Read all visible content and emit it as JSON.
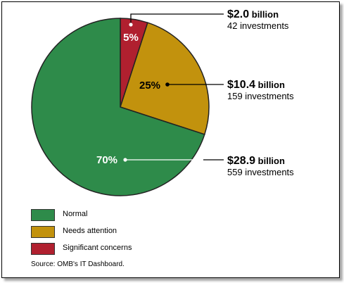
{
  "chart_data": {
    "type": "pie",
    "slices": [
      {
        "name": "Significant concerns",
        "percent": 5,
        "amount": "$2.0",
        "unit": "billion",
        "investments": "42 investments",
        "color": "#b0202f"
      },
      {
        "name": "Needs attention",
        "percent": 25,
        "amount": "$10.4",
        "unit": "billion",
        "investments": "159 investments",
        "color": "#c2920d"
      },
      {
        "name": "Normal",
        "percent": 70,
        "amount": "$28.9",
        "unit": "billion",
        "investments": "559 investments",
        "color": "#2e8b4a"
      }
    ],
    "labels": {
      "p_sig": "5%",
      "p_need": "25%",
      "p_norm": "70%"
    },
    "legend": [
      {
        "label": "Normal",
        "color": "#2e8b4a"
      },
      {
        "label": "Needs attention",
        "color": "#c2920d"
      },
      {
        "label": "Significant concerns",
        "color": "#b0202f"
      }
    ],
    "source": "Source: OMB's IT Dashboard."
  }
}
